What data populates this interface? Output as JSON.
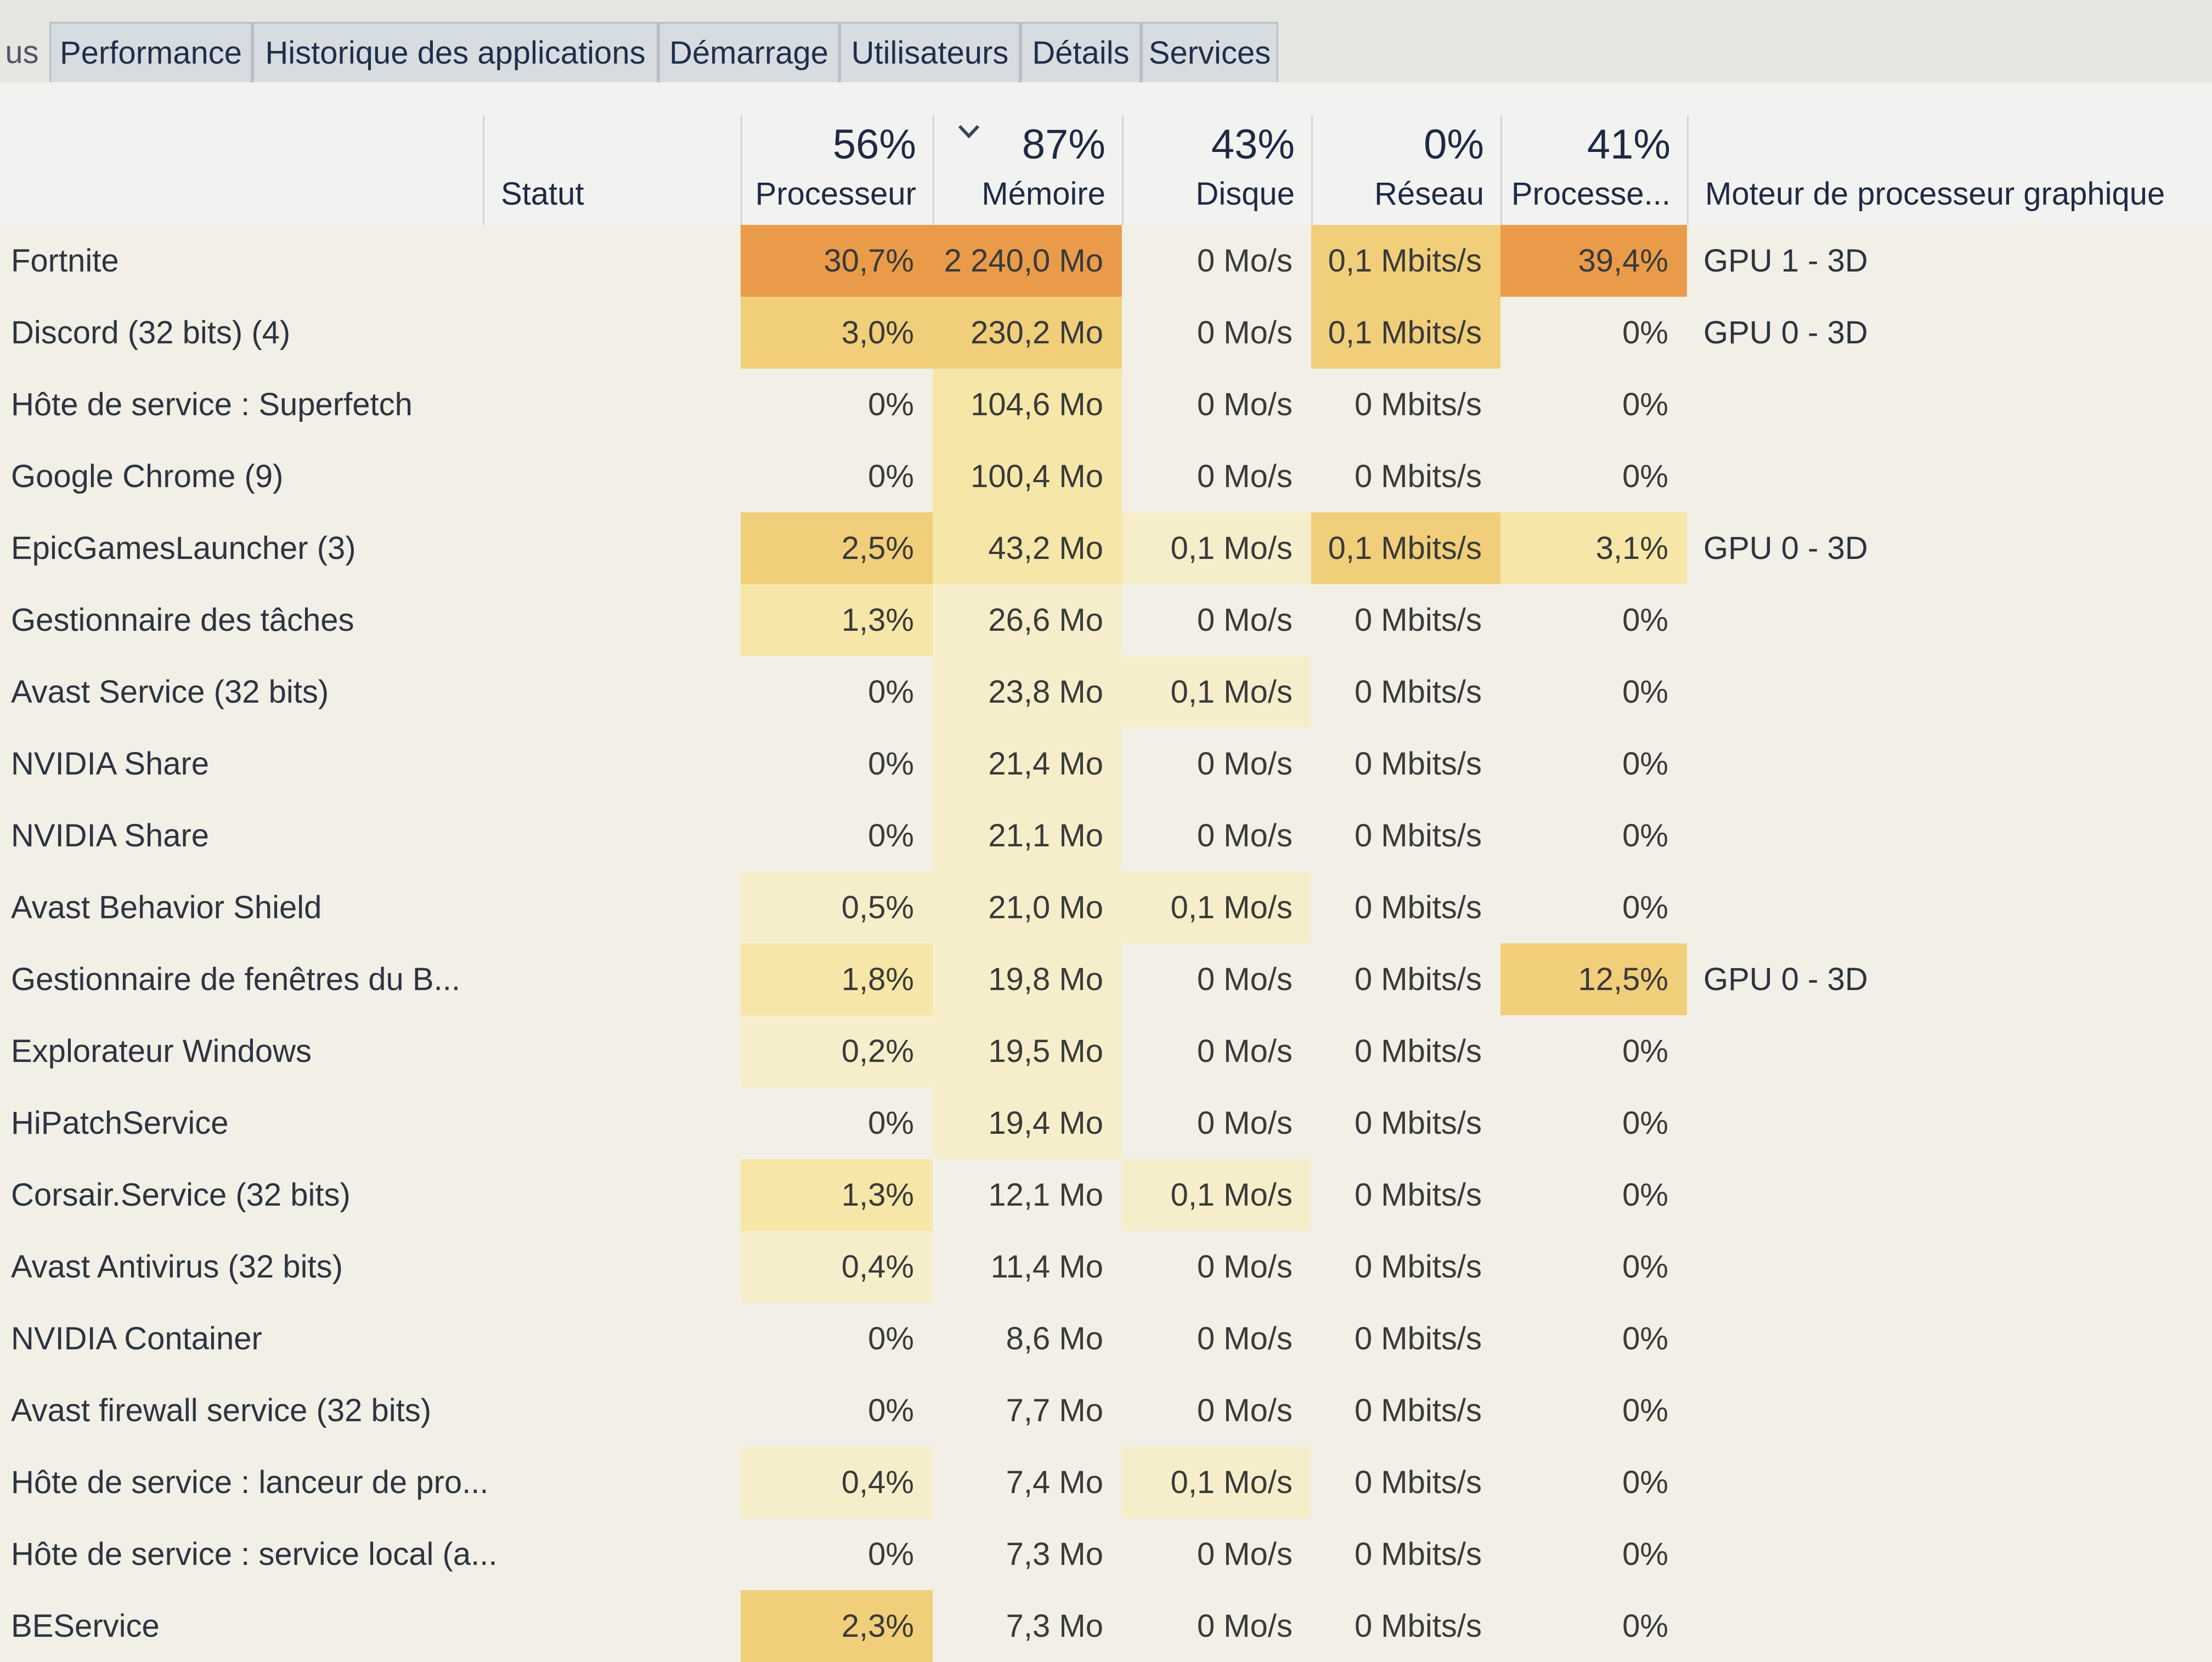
{
  "tabs": [
    {
      "label": "us"
    },
    {
      "label": "Performance"
    },
    {
      "label": "Historique des applications"
    },
    {
      "label": "Démarrage"
    },
    {
      "label": "Utilisateurs"
    },
    {
      "label": "Détails"
    },
    {
      "label": "Services"
    }
  ],
  "header": {
    "name_col": "",
    "status": "Statut",
    "cpu": {
      "percent": "56%",
      "label": "Processeur"
    },
    "memory": {
      "percent": "87%",
      "label": "Mémoire"
    },
    "disk": {
      "percent": "43%",
      "label": "Disque"
    },
    "network": {
      "percent": "0%",
      "label": "Réseau"
    },
    "gpu": {
      "percent": "41%",
      "label": "Processe..."
    },
    "gpu_engine": {
      "label": "Moteur de processeur graphique"
    },
    "sort_icon": "chevron-down-icon"
  },
  "colors": {
    "heat_high": "#ea9b4a",
    "heat_med": "#f1cf7a",
    "heat_low": "#f6e7a8",
    "heat_faint": "#f6eecb",
    "row_bg": "#f1efe6"
  },
  "processes": [
    {
      "name": "Fortnite",
      "cpu": "30,7%",
      "memory": "2 240,0 Mo",
      "disk": "0 Mo/s",
      "network": "0,1 Mbits/s",
      "gpu": "39,4%",
      "gpu_engine": "GPU 1 - 3D"
    },
    {
      "name": "Discord (32 bits) (4)",
      "cpu": "3,0%",
      "memory": "230,2 Mo",
      "disk": "0 Mo/s",
      "network": "0,1 Mbits/s",
      "gpu": "0%",
      "gpu_engine": "GPU 0 - 3D"
    },
    {
      "name": "Hôte de service : Superfetch",
      "cpu": "0%",
      "memory": "104,6 Mo",
      "disk": "0 Mo/s",
      "network": "0 Mbits/s",
      "gpu": "0%",
      "gpu_engine": ""
    },
    {
      "name": "Google Chrome (9)",
      "cpu": "0%",
      "memory": "100,4 Mo",
      "disk": "0 Mo/s",
      "network": "0 Mbits/s",
      "gpu": "0%",
      "gpu_engine": ""
    },
    {
      "name": "EpicGamesLauncher (3)",
      "cpu": "2,5%",
      "memory": "43,2 Mo",
      "disk": "0,1 Mo/s",
      "network": "0,1 Mbits/s",
      "gpu": "3,1%",
      "gpu_engine": "GPU 0 - 3D"
    },
    {
      "name": "Gestionnaire des tâches",
      "cpu": "1,3%",
      "memory": "26,6 Mo",
      "disk": "0 Mo/s",
      "network": "0 Mbits/s",
      "gpu": "0%",
      "gpu_engine": ""
    },
    {
      "name": "Avast Service (32 bits)",
      "cpu": "0%",
      "memory": "23,8 Mo",
      "disk": "0,1 Mo/s",
      "network": "0 Mbits/s",
      "gpu": "0%",
      "gpu_engine": ""
    },
    {
      "name": "NVIDIA Share",
      "cpu": "0%",
      "memory": "21,4 Mo",
      "disk": "0 Mo/s",
      "network": "0 Mbits/s",
      "gpu": "0%",
      "gpu_engine": ""
    },
    {
      "name": "NVIDIA Share",
      "cpu": "0%",
      "memory": "21,1 Mo",
      "disk": "0 Mo/s",
      "network": "0 Mbits/s",
      "gpu": "0%",
      "gpu_engine": ""
    },
    {
      "name": "Avast Behavior Shield",
      "cpu": "0,5%",
      "memory": "21,0 Mo",
      "disk": "0,1 Mo/s",
      "network": "0 Mbits/s",
      "gpu": "0%",
      "gpu_engine": ""
    },
    {
      "name": "Gestionnaire de fenêtres du B...",
      "cpu": "1,8%",
      "memory": "19,8 Mo",
      "disk": "0 Mo/s",
      "network": "0 Mbits/s",
      "gpu": "12,5%",
      "gpu_engine": "GPU 0 - 3D"
    },
    {
      "name": "Explorateur Windows",
      "cpu": "0,2%",
      "memory": "19,5 Mo",
      "disk": "0 Mo/s",
      "network": "0 Mbits/s",
      "gpu": "0%",
      "gpu_engine": ""
    },
    {
      "name": "HiPatchService",
      "cpu": "0%",
      "memory": "19,4 Mo",
      "disk": "0 Mo/s",
      "network": "0 Mbits/s",
      "gpu": "0%",
      "gpu_engine": ""
    },
    {
      "name": "Corsair.Service (32 bits)",
      "cpu": "1,3%",
      "memory": "12,1 Mo",
      "disk": "0,1 Mo/s",
      "network": "0 Mbits/s",
      "gpu": "0%",
      "gpu_engine": ""
    },
    {
      "name": "Avast Antivirus (32 bits)",
      "cpu": "0,4%",
      "memory": "11,4 Mo",
      "disk": "0 Mo/s",
      "network": "0 Mbits/s",
      "gpu": "0%",
      "gpu_engine": ""
    },
    {
      "name": "NVIDIA Container",
      "cpu": "0%",
      "memory": "8,6 Mo",
      "disk": "0 Mo/s",
      "network": "0 Mbits/s",
      "gpu": "0%",
      "gpu_engine": ""
    },
    {
      "name": "Avast firewall service (32 bits)",
      "cpu": "0%",
      "memory": "7,7 Mo",
      "disk": "0 Mo/s",
      "network": "0 Mbits/s",
      "gpu": "0%",
      "gpu_engine": ""
    },
    {
      "name": "Hôte de service : lanceur de pro...",
      "cpu": "0,4%",
      "memory": "7,4 Mo",
      "disk": "0,1 Mo/s",
      "network": "0 Mbits/s",
      "gpu": "0%",
      "gpu_engine": ""
    },
    {
      "name": "Hôte de service : service local (a...",
      "cpu": "0%",
      "memory": "7,3 Mo",
      "disk": "0 Mo/s",
      "network": "0 Mbits/s",
      "gpu": "0%",
      "gpu_engine": ""
    },
    {
      "name": "BEService",
      "cpu": "2,3%",
      "memory": "7,3 Mo",
      "disk": "0 Mo/s",
      "network": "0 Mbits/s",
      "gpu": "0%",
      "gpu_engine": ""
    }
  ]
}
